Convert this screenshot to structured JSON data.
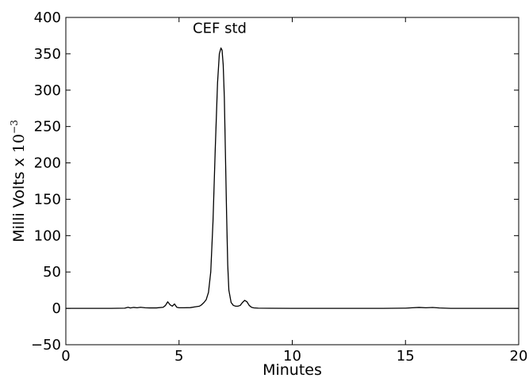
{
  "chart_data": {
    "type": "line",
    "title": "",
    "xlabel": "Minutes",
    "ylabel_text": "Milli Volts x ",
    "ylabel_base": "10",
    "ylabel_exponent": "−3",
    "xlim": [
      0,
      20
    ],
    "ylim": [
      -50,
      400
    ],
    "x_ticks": [
      0,
      5,
      10,
      15,
      20
    ],
    "x_tick_labels": [
      "0",
      "5",
      "10",
      "15",
      "20"
    ],
    "y_ticks": [
      -50,
      0,
      50,
      100,
      150,
      200,
      250,
      300,
      350,
      400
    ],
    "y_tick_labels": [
      "−50",
      "0",
      "50",
      "100",
      "150",
      "200",
      "250",
      "300",
      "350",
      "400"
    ],
    "grid": false,
    "line_color": "#000000",
    "annotations": [
      {
        "text": "CEF std",
        "x": 6.9,
        "y": 358
      }
    ],
    "series": [
      {
        "x": [
          0,
          1,
          2,
          2.6,
          2.75,
          2.85,
          3.0,
          3.15,
          3.3,
          3.5,
          3.7,
          4.0,
          4.3,
          4.4,
          4.5,
          4.6,
          4.7,
          4.8,
          4.9,
          5.0,
          5.2,
          5.5,
          5.7,
          5.9,
          6.0,
          6.1,
          6.2,
          6.3,
          6.4,
          6.5,
          6.6,
          6.7,
          6.78,
          6.85,
          6.9,
          6.95,
          7.0,
          7.05,
          7.1,
          7.15,
          7.2,
          7.3,
          7.4,
          7.5,
          7.6,
          7.7,
          7.8,
          7.9,
          8.0,
          8.1,
          8.2,
          8.3,
          8.5,
          9.0,
          10.0,
          12.0,
          14.0,
          15.0,
          15.3,
          15.6,
          15.9,
          16.2,
          16.5,
          17.0,
          18.0,
          19.0,
          20.0
        ],
        "y": [
          0,
          0,
          0,
          0.3,
          1.5,
          0.5,
          1.3,
          0.8,
          1.5,
          0.8,
          0.6,
          0.6,
          1.5,
          4,
          9,
          5,
          3,
          6,
          1.5,
          0.8,
          0.8,
          1,
          2,
          3,
          5,
          8,
          12,
          22,
          50,
          120,
          220,
          310,
          350,
          358,
          355,
          335,
          290,
          210,
          130,
          60,
          25,
          8,
          4,
          3,
          3,
          4,
          8,
          11,
          9,
          4,
          1.5,
          0.7,
          0.3,
          0.1,
          0,
          0,
          0,
          0.3,
          0.8,
          1.3,
          0.8,
          1.2,
          0.5,
          0,
          0,
          0,
          0
        ]
      }
    ]
  }
}
